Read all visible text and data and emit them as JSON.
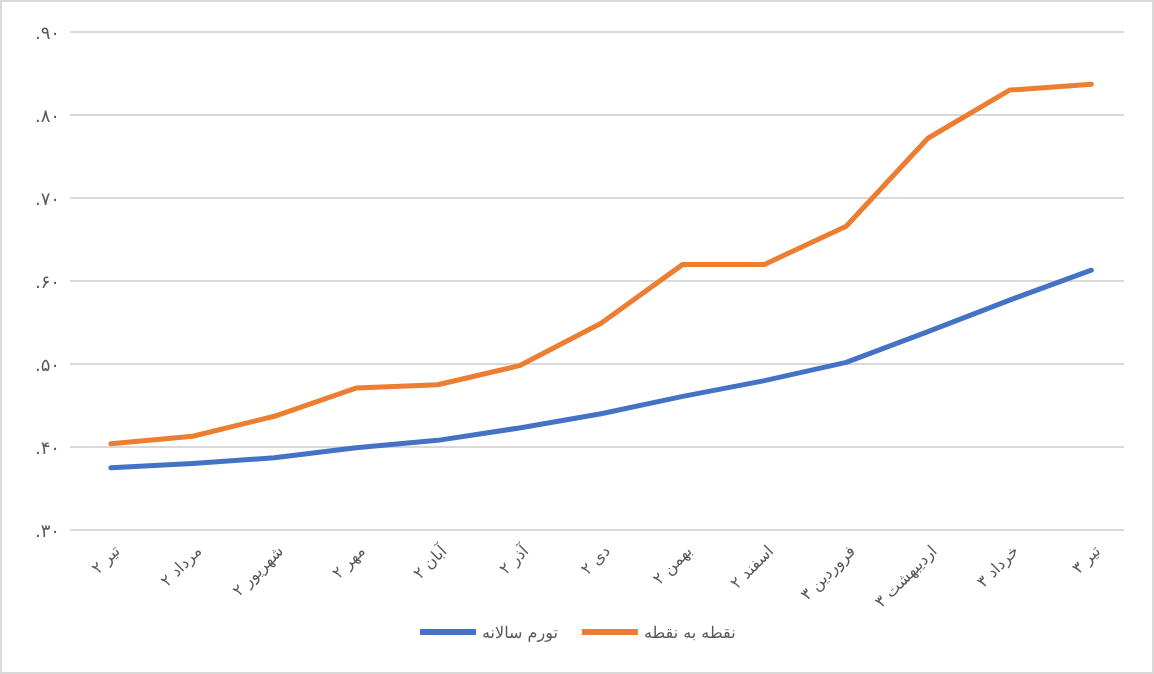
{
  "chart_data": {
    "type": "line",
    "categories": [
      "تیر ۲",
      "مرداد ۲",
      "شهریور ۲",
      "مهر ۲",
      "آبان ۲",
      "آذر ۲",
      "دی ۲",
      "بهمن ۲",
      "اسفند ۲",
      "فروردین ۳",
      "اردیبهشت ۳",
      "خرداد ۳",
      "تیر ۳"
    ],
    "series": [
      {
        "name": "نقطه به نقطه",
        "color": "#ed7d31",
        "values": [
          0.404,
          0.413,
          0.437,
          0.471,
          0.475,
          0.498,
          0.549,
          0.62,
          0.62,
          0.666,
          0.772,
          0.83,
          0.837
        ]
      },
      {
        "name": "تورم سالانه",
        "color": "#4472c4",
        "values": [
          0.375,
          0.38,
          0.387,
          0.399,
          0.408,
          0.423,
          0.44,
          0.461,
          0.48,
          0.502,
          0.539,
          0.577,
          0.613
        ]
      }
    ],
    "ylim": [
      0.3,
      0.9
    ],
    "yticks": [
      {
        "value": 0.3,
        "label": ".۳۰"
      },
      {
        "value": 0.4,
        "label": ".۴۰"
      },
      {
        "value": 0.5,
        "label": ".۵۰"
      },
      {
        "value": 0.6,
        "label": ".۶۰"
      },
      {
        "value": 0.7,
        "label": ".۷۰"
      },
      {
        "value": 0.8,
        "label": ".۸۰"
      },
      {
        "value": 0.9,
        "label": ".۹۰"
      }
    ],
    "grid": "y",
    "legend": "bottom"
  }
}
